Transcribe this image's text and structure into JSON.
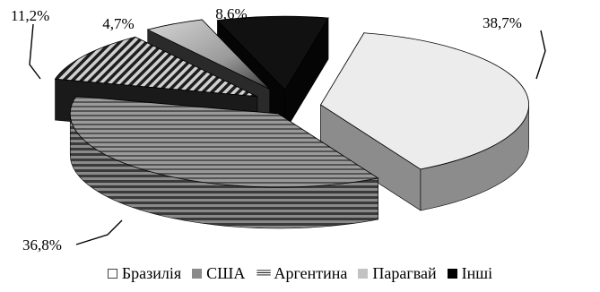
{
  "chart_data": {
    "type": "pie",
    "style": "3d-exploded",
    "labels": [
      "Бразилія",
      "США",
      "Аргентина",
      "Парагвай",
      "Інші"
    ],
    "values": [
      38.7,
      36.8,
      11.2,
      4.7,
      8.6
    ],
    "data_labels": [
      "38,7%",
      "36,8%",
      "11,2%",
      "4,7%",
      "8,6%"
    ],
    "colors": [
      "#ececec",
      "#8a8a8a",
      "#3c3c3c",
      "#b9b9b9",
      "#111111"
    ],
    "patterns": [
      "solid",
      "horizontal-stripes",
      "diagonal-stripes",
      "solid",
      "solid"
    ],
    "legend": "bottom",
    "legend_symbols": [
      "□",
      "■",
      "≡≡",
      "■",
      "■"
    ]
  }
}
